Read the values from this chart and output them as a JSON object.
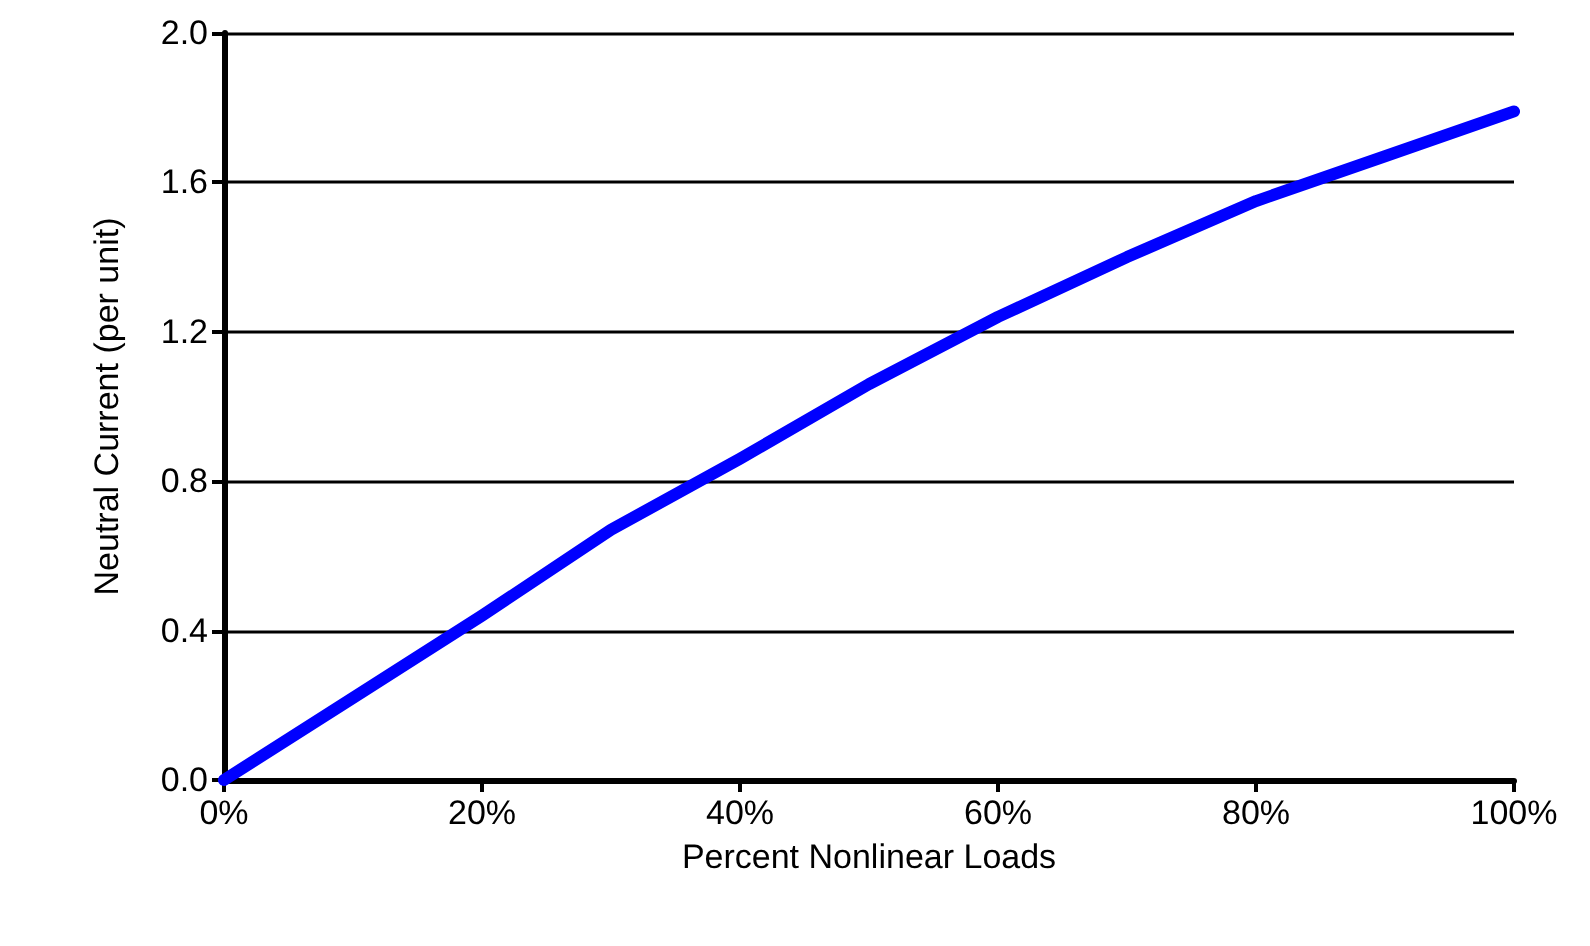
{
  "chart_data": {
    "type": "line",
    "xlabel": "Percent Nonlinear Loads",
    "ylabel": "Neutral Current (per unit)",
    "x": [
      0,
      10,
      20,
      30,
      40,
      50,
      60,
      70,
      80,
      90,
      100
    ],
    "series": [
      {
        "color": "#0000ff",
        "values": [
          0,
          0.22,
          0.44,
          0.67,
          0.86,
          1.06,
          1.24,
          1.4,
          1.55,
          1.67,
          1.79
        ]
      }
    ],
    "xlim": [
      0,
      100
    ],
    "xticks": [
      {
        "value": 0,
        "label": "0%"
      },
      {
        "value": 20,
        "label": "20%"
      },
      {
        "value": 40,
        "label": "40%"
      },
      {
        "value": 60,
        "label": "60%"
      },
      {
        "value": 80,
        "label": "80%"
      },
      {
        "value": 100,
        "label": "100%"
      }
    ],
    "ylim": [
      0,
      2
    ],
    "yticks": [
      {
        "value": 0,
        "label": "0.0"
      },
      {
        "value": 0.4,
        "label": "0.4"
      },
      {
        "value": 0.8,
        "label": "0.8"
      },
      {
        "value": 1.2,
        "label": "1.2"
      },
      {
        "value": 1.6,
        "label": "1.6"
      },
      {
        "value": 2,
        "label": "2.0"
      }
    ],
    "grid": "y",
    "marker": "none",
    "line_style": "solid"
  }
}
